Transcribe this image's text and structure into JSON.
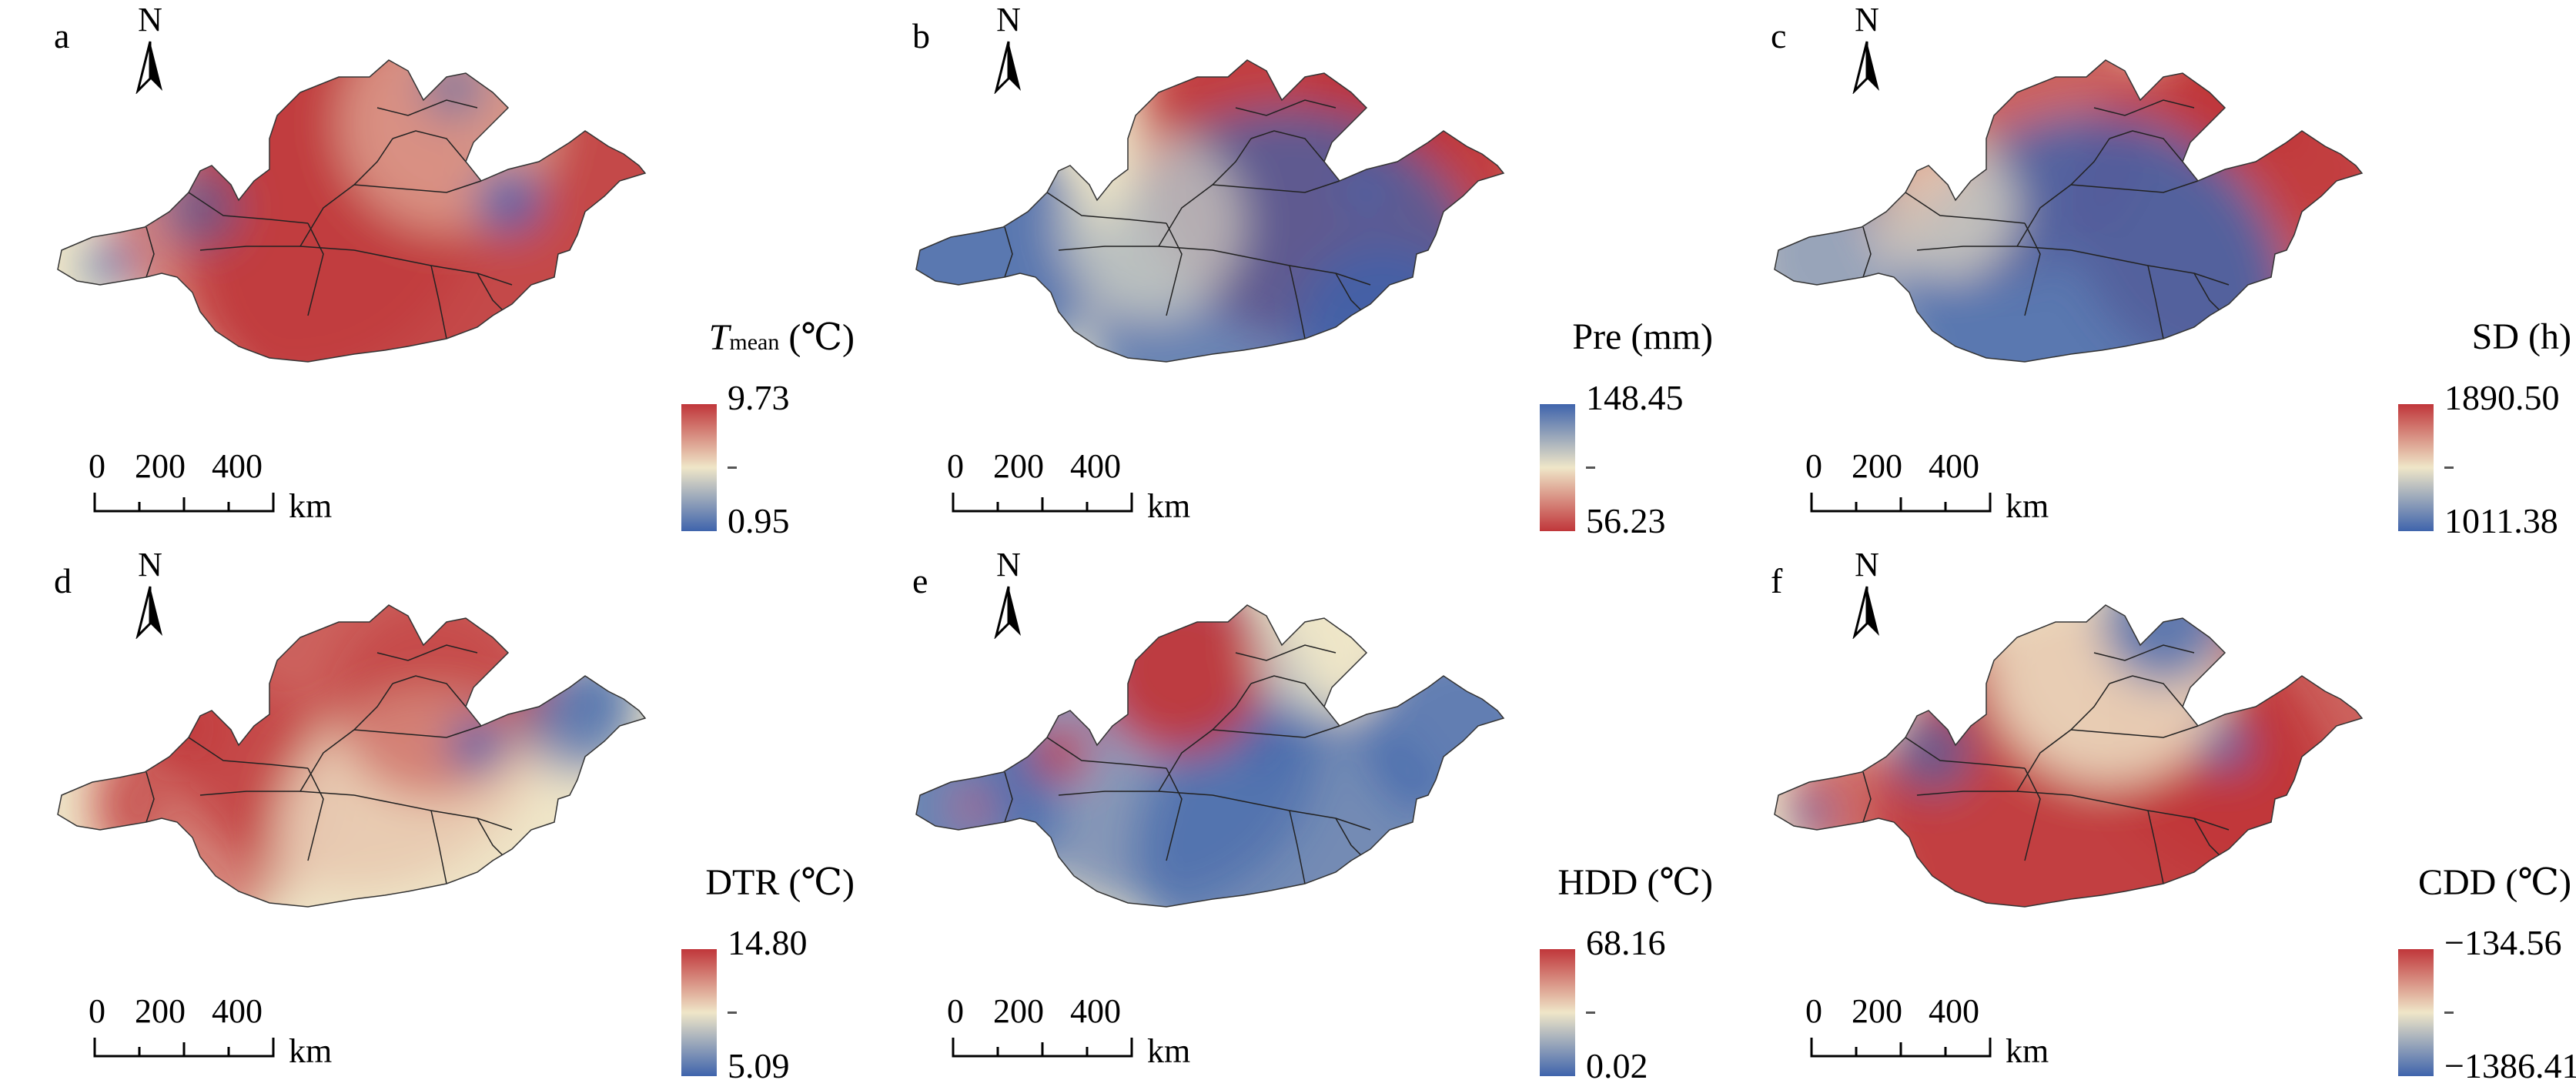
{
  "panels": [
    {
      "letter": "a",
      "north": "N",
      "title_main": "T",
      "title_sub": "mean",
      "title_unit": " (℃)",
      "max": "9.73",
      "min": "0.95",
      "scale": [
        "0",
        "200",
        "400"
      ],
      "km": "km"
    },
    {
      "letter": "b",
      "north": "N",
      "title_main": "Pre (mm)",
      "title_sub": "",
      "title_unit": "",
      "max": "148.45",
      "min": "56.23",
      "scale": [
        "0",
        "200",
        "400"
      ],
      "km": "km"
    },
    {
      "letter": "c",
      "north": "N",
      "title_main": "SD (h)",
      "title_sub": "",
      "title_unit": "",
      "max": "1890.50",
      "min": "1011.38",
      "scale": [
        "0",
        "200",
        "400"
      ],
      "km": "km"
    },
    {
      "letter": "d",
      "north": "N",
      "title_main": "DTR (℃)",
      "title_sub": "",
      "title_unit": "",
      "max": "14.80",
      "min": "5.09",
      "scale": [
        "0",
        "200",
        "400"
      ],
      "km": "km"
    },
    {
      "letter": "e",
      "north": "N",
      "title_main": "HDD (℃)",
      "title_sub": "",
      "title_unit": "",
      "max": "68.16",
      "min": "0.02",
      "scale": [
        "0",
        "200",
        "400"
      ],
      "km": "km"
    },
    {
      "letter": "f",
      "north": "N",
      "title_main": "CDD (℃)",
      "title_sub": "",
      "title_unit": "",
      "max": "−134.56",
      "min": "−1386.41",
      "scale": [
        "0",
        "200",
        "400"
      ],
      "km": "km"
    }
  ],
  "colors": {
    "high": "#c0363a",
    "mid": "#efe6c8",
    "low": "#3f64ac"
  }
}
